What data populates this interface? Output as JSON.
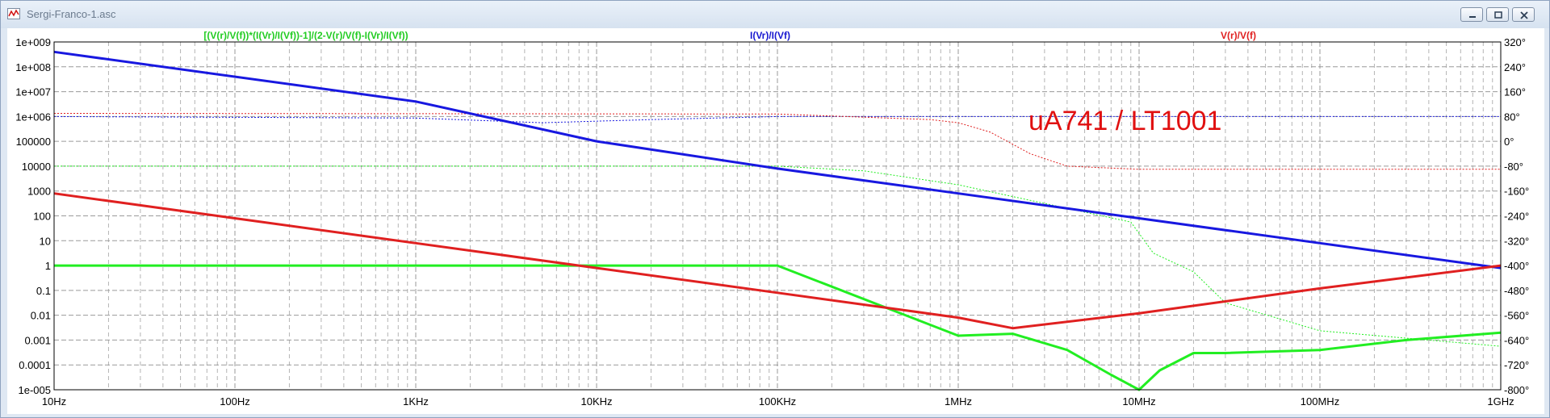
{
  "window": {
    "title": "Sergi-Franco-1.asc",
    "icons": [
      "ltspice-waveform-icon",
      "minimize-icon",
      "restore-icon",
      "close-icon"
    ]
  },
  "chart_data": {
    "type": "line",
    "x_scale": "log",
    "y_scale": "log",
    "xlim": [
      10,
      1000000000
    ],
    "ylim_left": [
      1e-05,
      1000000000
    ],
    "ylim_right": [
      -800,
      320
    ],
    "grid": true,
    "annotation": "uA741 / LT1001",
    "x_tick_labels": [
      "10Hz",
      "100Hz",
      "1KHz",
      "10KHz",
      "100KHz",
      "1MHz",
      "10MHz",
      "100MHz",
      "1GHz"
    ],
    "x_ticks": [
      10,
      100,
      1000,
      10000,
      100000,
      1000000,
      10000000,
      100000000,
      1000000000
    ],
    "y_left_tick_labels": [
      "1e+009",
      "1e+008",
      "1e+007",
      "1e+006",
      "100000",
      "10000",
      "1000",
      "100",
      "10",
      "1",
      "0.1",
      "0.01",
      "0.001",
      "0.0001",
      "1e-005"
    ],
    "y_left_ticks": [
      1000000000,
      100000000,
      10000000,
      1000000,
      100000,
      10000,
      1000,
      100,
      10,
      1,
      0.1,
      0.01,
      0.001,
      0.0001,
      1e-05
    ],
    "y_right_tick_labels": [
      "320°",
      "240°",
      "160°",
      "80°",
      "0°",
      "-80°",
      "-160°",
      "-240°",
      "-320°",
      "-400°",
      "-480°",
      "-560°",
      "-640°",
      "-720°",
      "-800°"
    ],
    "y_right_ticks": [
      320,
      240,
      160,
      80,
      0,
      -80,
      -160,
      -240,
      -320,
      -400,
      -480,
      -560,
      -640,
      -720,
      -800
    ],
    "series": [
      {
        "name": "[(V(r)/V(f))*(I(Vr)/I(Vf))-1]/(2-V(r)/V(f)-I(Vr)/I(Vf))",
        "color": "#22ee22",
        "magnitude": [
          [
            10,
            1.0
          ],
          [
            100,
            1.0
          ],
          [
            1000,
            1.0
          ],
          [
            10000,
            1.0
          ],
          [
            100000,
            1.0
          ],
          [
            1000000,
            0.0015
          ],
          [
            2000000,
            0.0018
          ],
          [
            4000000,
            0.0004
          ],
          [
            7000000,
            4e-05
          ],
          [
            10000000,
            1e-05
          ],
          [
            13000000,
            6e-05
          ],
          [
            20000000,
            0.0003
          ],
          [
            30000000,
            0.0003
          ],
          [
            100000000,
            0.0004
          ],
          [
            300000000,
            0.001
          ],
          [
            1000000000,
            0.002
          ]
        ],
        "phase": [
          [
            10,
            -80
          ],
          [
            100,
            -80
          ],
          [
            1000,
            -80
          ],
          [
            10000,
            -80
          ],
          [
            100000,
            -80
          ],
          [
            300000,
            -95
          ],
          [
            1000000,
            -140
          ],
          [
            3000000,
            -200
          ],
          [
            9000000,
            -260
          ],
          [
            12000000,
            -360
          ],
          [
            20000000,
            -420
          ],
          [
            30000000,
            -520
          ],
          [
            100000000,
            -610
          ],
          [
            1000000000,
            -660
          ]
        ]
      },
      {
        "name": "I(Vr)/I(Vf)",
        "color": "#1818e0",
        "magnitude": [
          [
            10,
            400000000
          ],
          [
            1000,
            4000000
          ],
          [
            10000,
            100000
          ],
          [
            100000,
            8000
          ],
          [
            1000000,
            800
          ],
          [
            10000000,
            80
          ],
          [
            100000000,
            8
          ],
          [
            1000000000,
            0.8
          ]
        ],
        "phase": [
          [
            10,
            80
          ],
          [
            1000,
            75
          ],
          [
            5000,
            60
          ],
          [
            20000,
            70
          ],
          [
            100000,
            80
          ],
          [
            1000000,
            80
          ],
          [
            1000000000,
            80
          ]
        ]
      },
      {
        "name": "V(r)/V(f)",
        "color": "#e02020",
        "magnitude": [
          [
            10,
            800
          ],
          [
            100,
            80
          ],
          [
            1000,
            8
          ],
          [
            10000,
            0.8
          ],
          [
            100000,
            0.08
          ],
          [
            1000000,
            0.008
          ],
          [
            2000000,
            0.003
          ],
          [
            10000000,
            0.012
          ],
          [
            100000000,
            0.12
          ],
          [
            1000000000,
            1.0
          ]
        ],
        "phase": [
          [
            10,
            90
          ],
          [
            100000,
            88
          ],
          [
            700000,
            70
          ],
          [
            1000000,
            60
          ],
          [
            1500000,
            30
          ],
          [
            2500000,
            -40
          ],
          [
            4000000,
            -80
          ],
          [
            10000000,
            -90
          ],
          [
            1000000000,
            -90
          ]
        ]
      }
    ]
  }
}
